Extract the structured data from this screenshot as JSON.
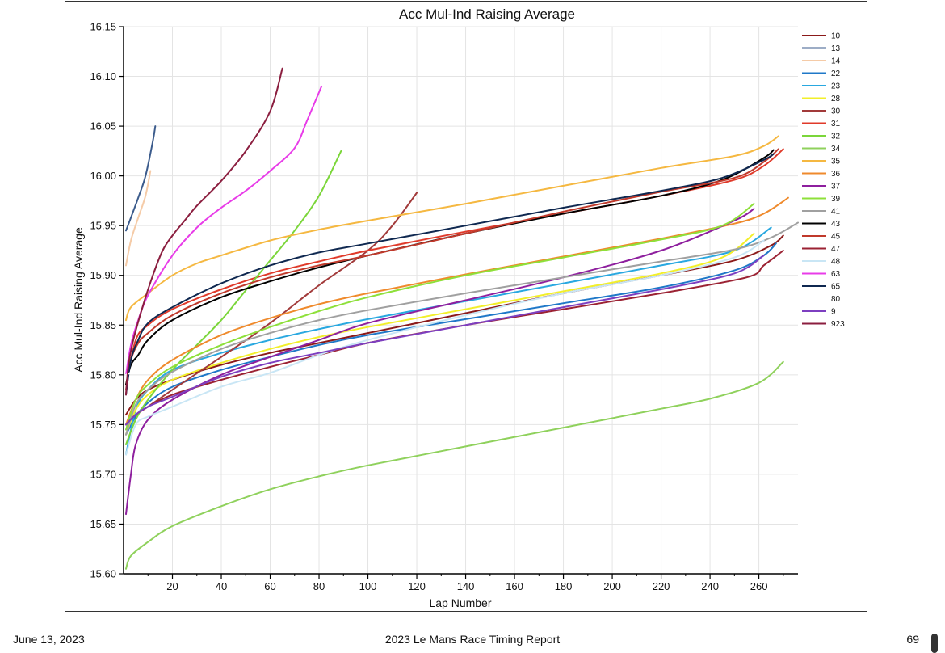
{
  "footer": {
    "date": "June 13, 2023",
    "report_title": "2023 Le Mans Race Timing Report",
    "page_number": "69"
  },
  "chart_data": {
    "type": "line",
    "title": "Acc Mul-Ind Raising Average",
    "xlabel": "Lap Number",
    "ylabel": "Acc Mul-Ind Raising Average",
    "xlim": [
      0,
      276
    ],
    "ylim": [
      15.6,
      16.15
    ],
    "x_ticks": [
      20,
      40,
      60,
      80,
      100,
      120,
      140,
      160,
      180,
      200,
      220,
      240,
      260
    ],
    "y_ticks": [
      15.6,
      15.65,
      15.7,
      15.75,
      15.8,
      15.85,
      15.9,
      15.95,
      16.0,
      16.05,
      16.1,
      16.15
    ],
    "grid": true,
    "legend_position": "right",
    "series": [
      {
        "name": "10",
        "color": "#8b1a1a",
        "x": [
          1,
          5,
          10,
          20,
          40,
          60,
          80,
          100,
          140,
          180,
          220,
          250,
          265,
          270
        ],
        "y": [
          15.76,
          15.775,
          15.785,
          15.795,
          15.81,
          15.822,
          15.832,
          15.842,
          15.862,
          15.882,
          15.9,
          15.915,
          15.93,
          15.94
        ]
      },
      {
        "name": "13",
        "color": "#3b5b8c",
        "x": [
          1,
          3,
          6,
          9,
          12,
          13
        ],
        "y": [
          15.945,
          15.958,
          15.978,
          16.0,
          16.035,
          16.05
        ]
      },
      {
        "name": "14",
        "color": "#f5cba7",
        "x": [
          1,
          3,
          6,
          9,
          11
        ],
        "y": [
          15.91,
          15.935,
          15.958,
          15.98,
          16.005
        ]
      },
      {
        "name": "22",
        "color": "#1f78c8",
        "x": [
          1,
          5,
          10,
          20,
          40,
          60,
          80,
          100,
          140,
          180,
          220,
          250,
          262,
          267
        ],
        "y": [
          15.74,
          15.758,
          15.772,
          15.788,
          15.805,
          15.818,
          15.83,
          15.84,
          15.856,
          15.872,
          15.888,
          15.905,
          15.92,
          15.932
        ]
      },
      {
        "name": "23",
        "color": "#29a8e0",
        "x": [
          1,
          5,
          10,
          20,
          40,
          60,
          80,
          100,
          140,
          180,
          220,
          250,
          265
        ],
        "y": [
          15.72,
          15.765,
          15.785,
          15.805,
          15.822,
          15.835,
          15.846,
          15.856,
          15.874,
          15.892,
          15.91,
          15.925,
          15.948
        ]
      },
      {
        "name": "28",
        "color": "#f2ef2a",
        "x": [
          1,
          5,
          10,
          20,
          40,
          60,
          80,
          100,
          140,
          180,
          220,
          245,
          258
        ],
        "y": [
          15.74,
          15.765,
          15.78,
          15.795,
          15.812,
          15.826,
          15.838,
          15.848,
          15.866,
          15.884,
          15.902,
          15.918,
          15.942
        ]
      },
      {
        "name": "30",
        "color": "#a23a3a",
        "x": [
          1,
          5,
          10,
          20,
          40,
          60,
          80,
          100,
          110,
          120
        ],
        "y": [
          15.75,
          15.76,
          15.768,
          15.785,
          15.818,
          15.852,
          15.89,
          15.925,
          15.95,
          15.983
        ]
      },
      {
        "name": "31",
        "color": "#e03a2a",
        "x": [
          1,
          5,
          10,
          20,
          40,
          60,
          80,
          100,
          140,
          180,
          220,
          250,
          262,
          270
        ],
        "y": [
          15.79,
          15.835,
          15.85,
          15.866,
          15.886,
          15.902,
          15.914,
          15.925,
          15.944,
          15.962,
          15.98,
          15.996,
          16.01,
          16.027
        ]
      },
      {
        "name": "32",
        "color": "#7bd63a",
        "x": [
          1,
          5,
          10,
          20,
          30,
          40,
          50,
          60,
          70,
          80,
          89
        ],
        "y": [
          15.73,
          15.755,
          15.775,
          15.805,
          15.83,
          15.855,
          15.885,
          15.915,
          15.945,
          15.98,
          16.025
        ]
      },
      {
        "name": "34",
        "color": "#8fd15c",
        "x": [
          1,
          3,
          10,
          20,
          40,
          60,
          80,
          100,
          140,
          180,
          220,
          240,
          260,
          270
        ],
        "y": [
          15.605,
          15.618,
          15.632,
          15.648,
          15.668,
          15.685,
          15.698,
          15.709,
          15.728,
          15.747,
          15.766,
          15.776,
          15.792,
          15.813
        ]
      },
      {
        "name": "35",
        "color": "#f5b841",
        "x": [
          1,
          3,
          10,
          20,
          30,
          40,
          60,
          80,
          100,
          140,
          180,
          220,
          250,
          262,
          268
        ],
        "y": [
          15.855,
          15.868,
          15.882,
          15.9,
          15.912,
          15.92,
          15.935,
          15.946,
          15.955,
          15.972,
          15.99,
          16.008,
          16.02,
          16.03,
          16.04
        ]
      },
      {
        "name": "36",
        "color": "#ef8a2c",
        "x": [
          1,
          5,
          10,
          20,
          40,
          60,
          80,
          100,
          140,
          180,
          220,
          250,
          262,
          272
        ],
        "y": [
          15.75,
          15.775,
          15.795,
          15.815,
          15.84,
          15.857,
          15.871,
          15.882,
          15.901,
          15.919,
          15.937,
          15.952,
          15.962,
          15.978
        ]
      },
      {
        "name": "37",
        "color": "#8e1f9e",
        "x": [
          1,
          3,
          5,
          10,
          20,
          40,
          60,
          80,
          100,
          140,
          180,
          220,
          250,
          258
        ],
        "y": [
          15.66,
          15.7,
          15.73,
          15.755,
          15.775,
          15.8,
          15.818,
          15.835,
          15.852,
          15.875,
          15.898,
          15.925,
          15.955,
          15.967
        ]
      },
      {
        "name": "39",
        "color": "#8ee03a",
        "x": [
          1,
          5,
          10,
          20,
          40,
          60,
          80,
          100,
          140,
          180,
          220,
          245,
          258
        ],
        "y": [
          15.745,
          15.775,
          15.79,
          15.808,
          15.83,
          15.848,
          15.864,
          15.878,
          15.9,
          15.918,
          15.936,
          15.95,
          15.972
        ]
      },
      {
        "name": "41",
        "color": "#a0a0a0",
        "x": [
          1,
          5,
          10,
          20,
          40,
          60,
          80,
          100,
          140,
          180,
          220,
          250,
          265,
          276
        ],
        "y": [
          15.74,
          15.77,
          15.785,
          15.803,
          15.826,
          15.842,
          15.855,
          15.865,
          15.882,
          15.898,
          15.914,
          15.926,
          15.938,
          15.953
        ]
      },
      {
        "name": "43",
        "color": "#000000",
        "x": [
          1,
          3,
          6,
          10,
          20,
          40,
          60,
          80,
          100,
          140,
          180,
          220,
          245,
          262,
          266
        ],
        "y": [
          15.79,
          15.81,
          15.82,
          15.835,
          15.855,
          15.878,
          15.894,
          15.908,
          15.92,
          15.942,
          15.962,
          15.98,
          15.996,
          16.018,
          16.026
        ]
      },
      {
        "name": "45",
        "color": "#c0392b",
        "x": [
          1,
          3,
          6,
          10,
          20,
          40,
          60,
          80,
          100,
          140,
          180,
          220,
          250,
          262,
          268
        ],
        "y": [
          15.785,
          15.815,
          15.832,
          15.842,
          15.86,
          15.882,
          15.898,
          15.91,
          15.92,
          15.942,
          15.964,
          15.984,
          15.998,
          16.014,
          16.027
        ]
      },
      {
        "name": "47",
        "color": "#9b2233",
        "x": [
          1,
          5,
          10,
          20,
          40,
          60,
          80,
          100,
          140,
          180,
          220,
          255,
          262,
          270
        ],
        "y": [
          15.75,
          15.76,
          15.768,
          15.78,
          15.795,
          15.808,
          15.82,
          15.832,
          15.85,
          15.866,
          15.882,
          15.898,
          15.91,
          15.925
        ]
      },
      {
        "name": "48",
        "color": "#c9e6f5",
        "x": [
          1,
          5,
          10,
          20,
          40,
          60,
          80,
          100,
          140,
          180,
          220,
          250,
          262
        ],
        "y": [
          15.72,
          15.75,
          15.758,
          15.768,
          15.788,
          15.802,
          15.82,
          15.835,
          15.86,
          15.882,
          15.9,
          15.918,
          15.935
        ]
      },
      {
        "name": "63",
        "color": "#e83ce8",
        "x": [
          1,
          3,
          6,
          10,
          20,
          30,
          40,
          50,
          60,
          70,
          75,
          81
        ],
        "y": [
          15.8,
          15.83,
          15.855,
          15.88,
          15.92,
          15.948,
          15.968,
          15.985,
          16.005,
          16.028,
          16.055,
          16.09
        ]
      },
      {
        "name": "65",
        "color": "#0f2850",
        "x": [
          1,
          3,
          6,
          10,
          20,
          40,
          60,
          80,
          100,
          140,
          180,
          220,
          245,
          262,
          266
        ],
        "y": [
          15.78,
          15.815,
          15.835,
          15.852,
          15.868,
          15.892,
          15.91,
          15.923,
          15.932,
          15.95,
          15.968,
          15.985,
          15.998,
          16.016,
          16.022
        ]
      },
      {
        "name": "80",
        "color": "#ffffff",
        "x": [
          1,
          10,
          20
        ],
        "y": [
          15.8,
          15.81,
          15.82
        ]
      },
      {
        "name": "9",
        "color": "#7d3fc0",
        "x": [
          1,
          5,
          10,
          20,
          40,
          60,
          80,
          100,
          140,
          180,
          220,
          250,
          262
        ],
        "y": [
          15.75,
          15.76,
          15.768,
          15.778,
          15.798,
          15.812,
          15.822,
          15.832,
          15.85,
          15.868,
          15.886,
          15.902,
          15.92
        ]
      },
      {
        "name": "923",
        "color": "#8b1e3f",
        "x": [
          1,
          2,
          4,
          8,
          12,
          16,
          20,
          25,
          30,
          40,
          50,
          60,
          65
        ],
        "y": [
          15.78,
          15.81,
          15.835,
          15.87,
          15.9,
          15.925,
          15.94,
          15.955,
          15.97,
          15.995,
          16.025,
          16.065,
          16.108
        ]
      }
    ]
  }
}
